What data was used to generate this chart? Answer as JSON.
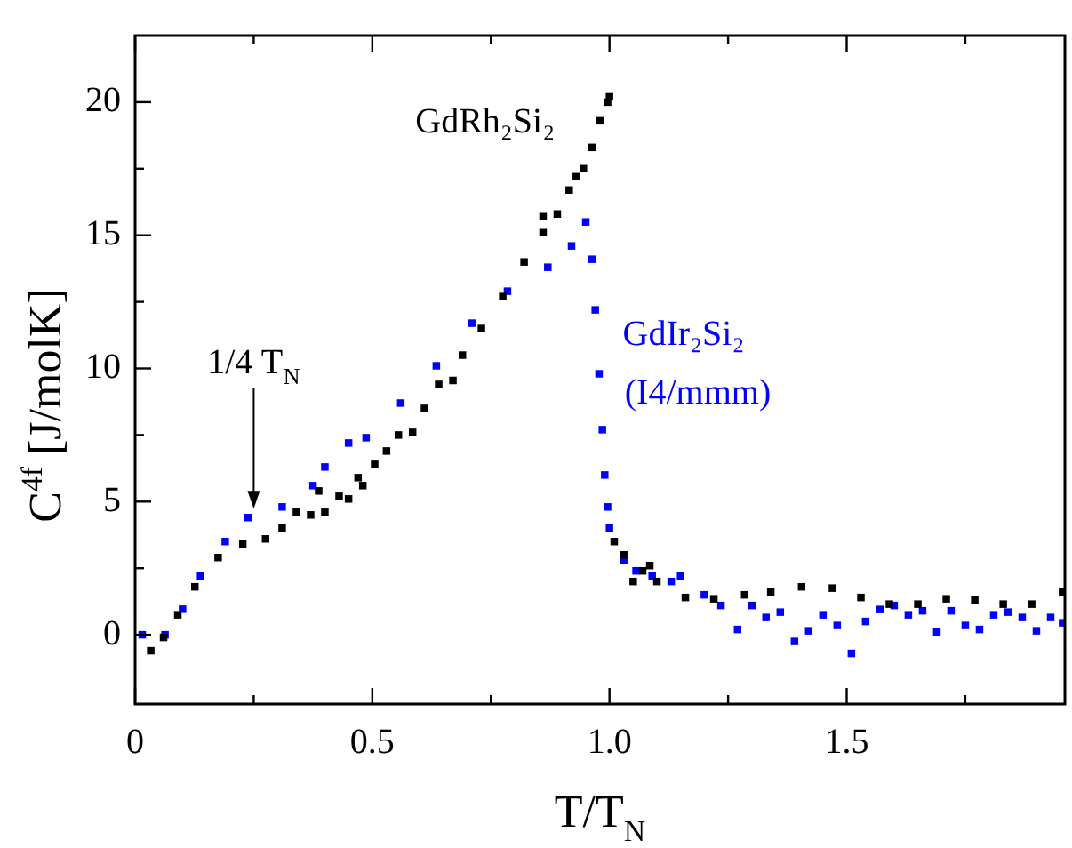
{
  "chart_data": {
    "type": "scatter",
    "xlabel": "T/T$_{N}$",
    "ylabel": "C$^{4f}$ [J/molK]",
    "marker": "square",
    "grid": false,
    "legend": "right",
    "xlim": [
      0,
      1.96
    ],
    "xticks": [
      0,
      {
        "value": 0.25,
        "label": null
      },
      {
        "value": 0.5,
        "label": "0.5"
      },
      {
        "value": 0.75,
        "label": null
      },
      {
        "value": 1,
        "label": "1.0"
      },
      {
        "value": 1.25,
        "label": null
      },
      {
        "value": 1.5,
        "label": "1.5"
      },
      {
        "value": 1.75,
        "label": null
      }
    ],
    "ylim": [
      -2.6,
      22.5
    ],
    "yticks": [
      0,
      {
        "value": 2.5,
        "label": null
      },
      5,
      {
        "value": 7.5,
        "label": null
      },
      10,
      {
        "value": 12.5,
        "label": null
      },
      15,
      {
        "value": 17.5,
        "label": null
      },
      20
    ],
    "annotations": [
      {
        "text": "1/4 T$_{N}$",
        "x": 0.25,
        "y": 4.6
      }
    ],
    "series": [
      {
        "name": "GdRh₂Si₂",
        "color": "#000000",
        "x": [
          0.033,
          0.06,
          0.09,
          0.126,
          0.175,
          0.227,
          0.275,
          0.31,
          0.34,
          0.37,
          0.387,
          0.4,
          0.43,
          0.45,
          0.47,
          0.48,
          0.505,
          0.53,
          0.555,
          0.585,
          0.61,
          0.64,
          0.67,
          0.69,
          0.73,
          0.775,
          0.82,
          0.86,
          0.86,
          0.89,
          0.915,
          0.93,
          0.945,
          0.963,
          0.98,
          0.996,
          1.0,
          1.01,
          1.03,
          1.05,
          1.07,
          1.085,
          1.1,
          1.16,
          1.22,
          1.285,
          1.34,
          1.405,
          1.47,
          1.53,
          1.59,
          1.65,
          1.71,
          1.77,
          1.83,
          1.89,
          1.955
        ],
        "values": [
          -0.6,
          -0.1,
          0.75,
          1.8,
          2.9,
          3.4,
          3.6,
          4.0,
          4.6,
          4.5,
          5.4,
          4.6,
          5.2,
          5.1,
          5.9,
          5.6,
          6.4,
          6.9,
          7.5,
          7.6,
          8.5,
          9.4,
          9.55,
          10.5,
          11.5,
          12.7,
          14.0,
          15.1,
          15.7,
          15.8,
          16.7,
          17.2,
          17.5,
          18.3,
          19.3,
          20.0,
          20.2,
          3.5,
          3.0,
          2.0,
          2.4,
          2.6,
          2.0,
          1.4,
          1.35,
          1.5,
          1.6,
          1.8,
          1.75,
          1.4,
          1.15,
          1.15,
          1.35,
          1.3,
          1.15,
          1.15,
          1.6
        ]
      },
      {
        "name": "GdIr₂Si₂\n(I4/mmm)",
        "color": "#0000ff",
        "x": [
          0.015,
          0.063,
          0.1,
          0.138,
          0.19,
          0.238,
          0.31,
          0.375,
          0.4,
          0.45,
          0.487,
          0.56,
          0.635,
          0.71,
          0.785,
          0.87,
          0.92,
          0.95,
          0.963,
          0.97,
          0.978,
          0.985,
          0.99,
          0.996,
          1.0,
          1.01,
          1.03,
          1.056,
          1.09,
          1.13,
          1.15,
          1.2,
          1.235,
          1.27,
          1.3,
          1.33,
          1.36,
          1.39,
          1.42,
          1.45,
          1.48,
          1.51,
          1.54,
          1.57,
          1.6,
          1.63,
          1.66,
          1.69,
          1.72,
          1.75,
          1.78,
          1.81,
          1.84,
          1.87,
          1.9,
          1.93,
          1.955
        ],
        "values": [
          0,
          0,
          0.96,
          2.2,
          3.5,
          4.4,
          4.8,
          5.6,
          6.3,
          7.2,
          7.4,
          8.7,
          10.1,
          11.7,
          12.9,
          13.8,
          14.6,
          15.5,
          14.1,
          12.2,
          9.8,
          7.7,
          6.0,
          4.8,
          4.0,
          null,
          2.8,
          2.4,
          2.2,
          2.0,
          2.2,
          1.5,
          1.1,
          0.2,
          1.1,
          0.65,
          0.85,
          -0.25,
          0.15,
          0.75,
          0.35,
          -0.7,
          0.5,
          0.95,
          1.1,
          0.75,
          0.9,
          0.1,
          0.9,
          0.35,
          0.2,
          0.75,
          0.85,
          0.65,
          0.15,
          0.65,
          0.45
        ]
      }
    ]
  }
}
